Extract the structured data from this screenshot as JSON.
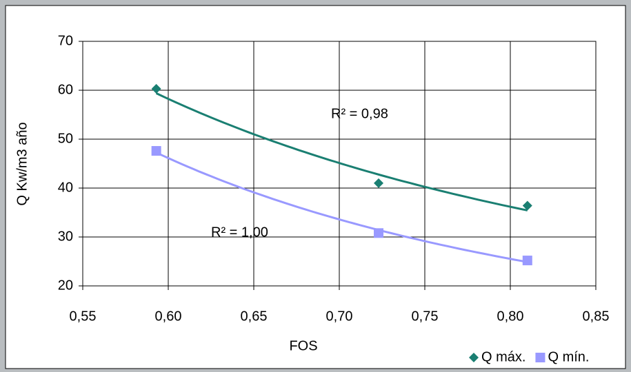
{
  "chart_data": {
    "type": "scatter",
    "x_label": "FOS",
    "y_label": "Q Kw/m3 año",
    "xlim": [
      0.55,
      0.85
    ],
    "xticks": [
      {
        "value": 0.55,
        "label": "0,55"
      },
      {
        "value": 0.6,
        "label": "0,60"
      },
      {
        "value": 0.65,
        "label": "0,65"
      },
      {
        "value": 0.7,
        "label": "0,70"
      },
      {
        "value": 0.75,
        "label": "0,75"
      },
      {
        "value": 0.8,
        "label": "0,80"
      },
      {
        "value": 0.85,
        "label": "0,85"
      }
    ],
    "ylim": [
      20,
      70
    ],
    "yticks": [
      20,
      30,
      40,
      50,
      60,
      70
    ],
    "grid": true,
    "trendline": "power",
    "legend": "bottom-right",
    "series": [
      {
        "name": "Q máx.",
        "color": "#1a7f72",
        "marker": "diamond",
        "x": [
          0.593,
          0.723,
          0.81
        ],
        "values": [
          60.3,
          41,
          36.4
        ]
      },
      {
        "name": "Q mín.",
        "color": "#9999ff",
        "marker": "square",
        "x": [
          0.593,
          0.723,
          0.81
        ],
        "values": [
          47.6,
          30.8,
          25.2
        ]
      }
    ],
    "annotations": [
      "R² = 0,98",
      "R² = 1,00"
    ]
  }
}
